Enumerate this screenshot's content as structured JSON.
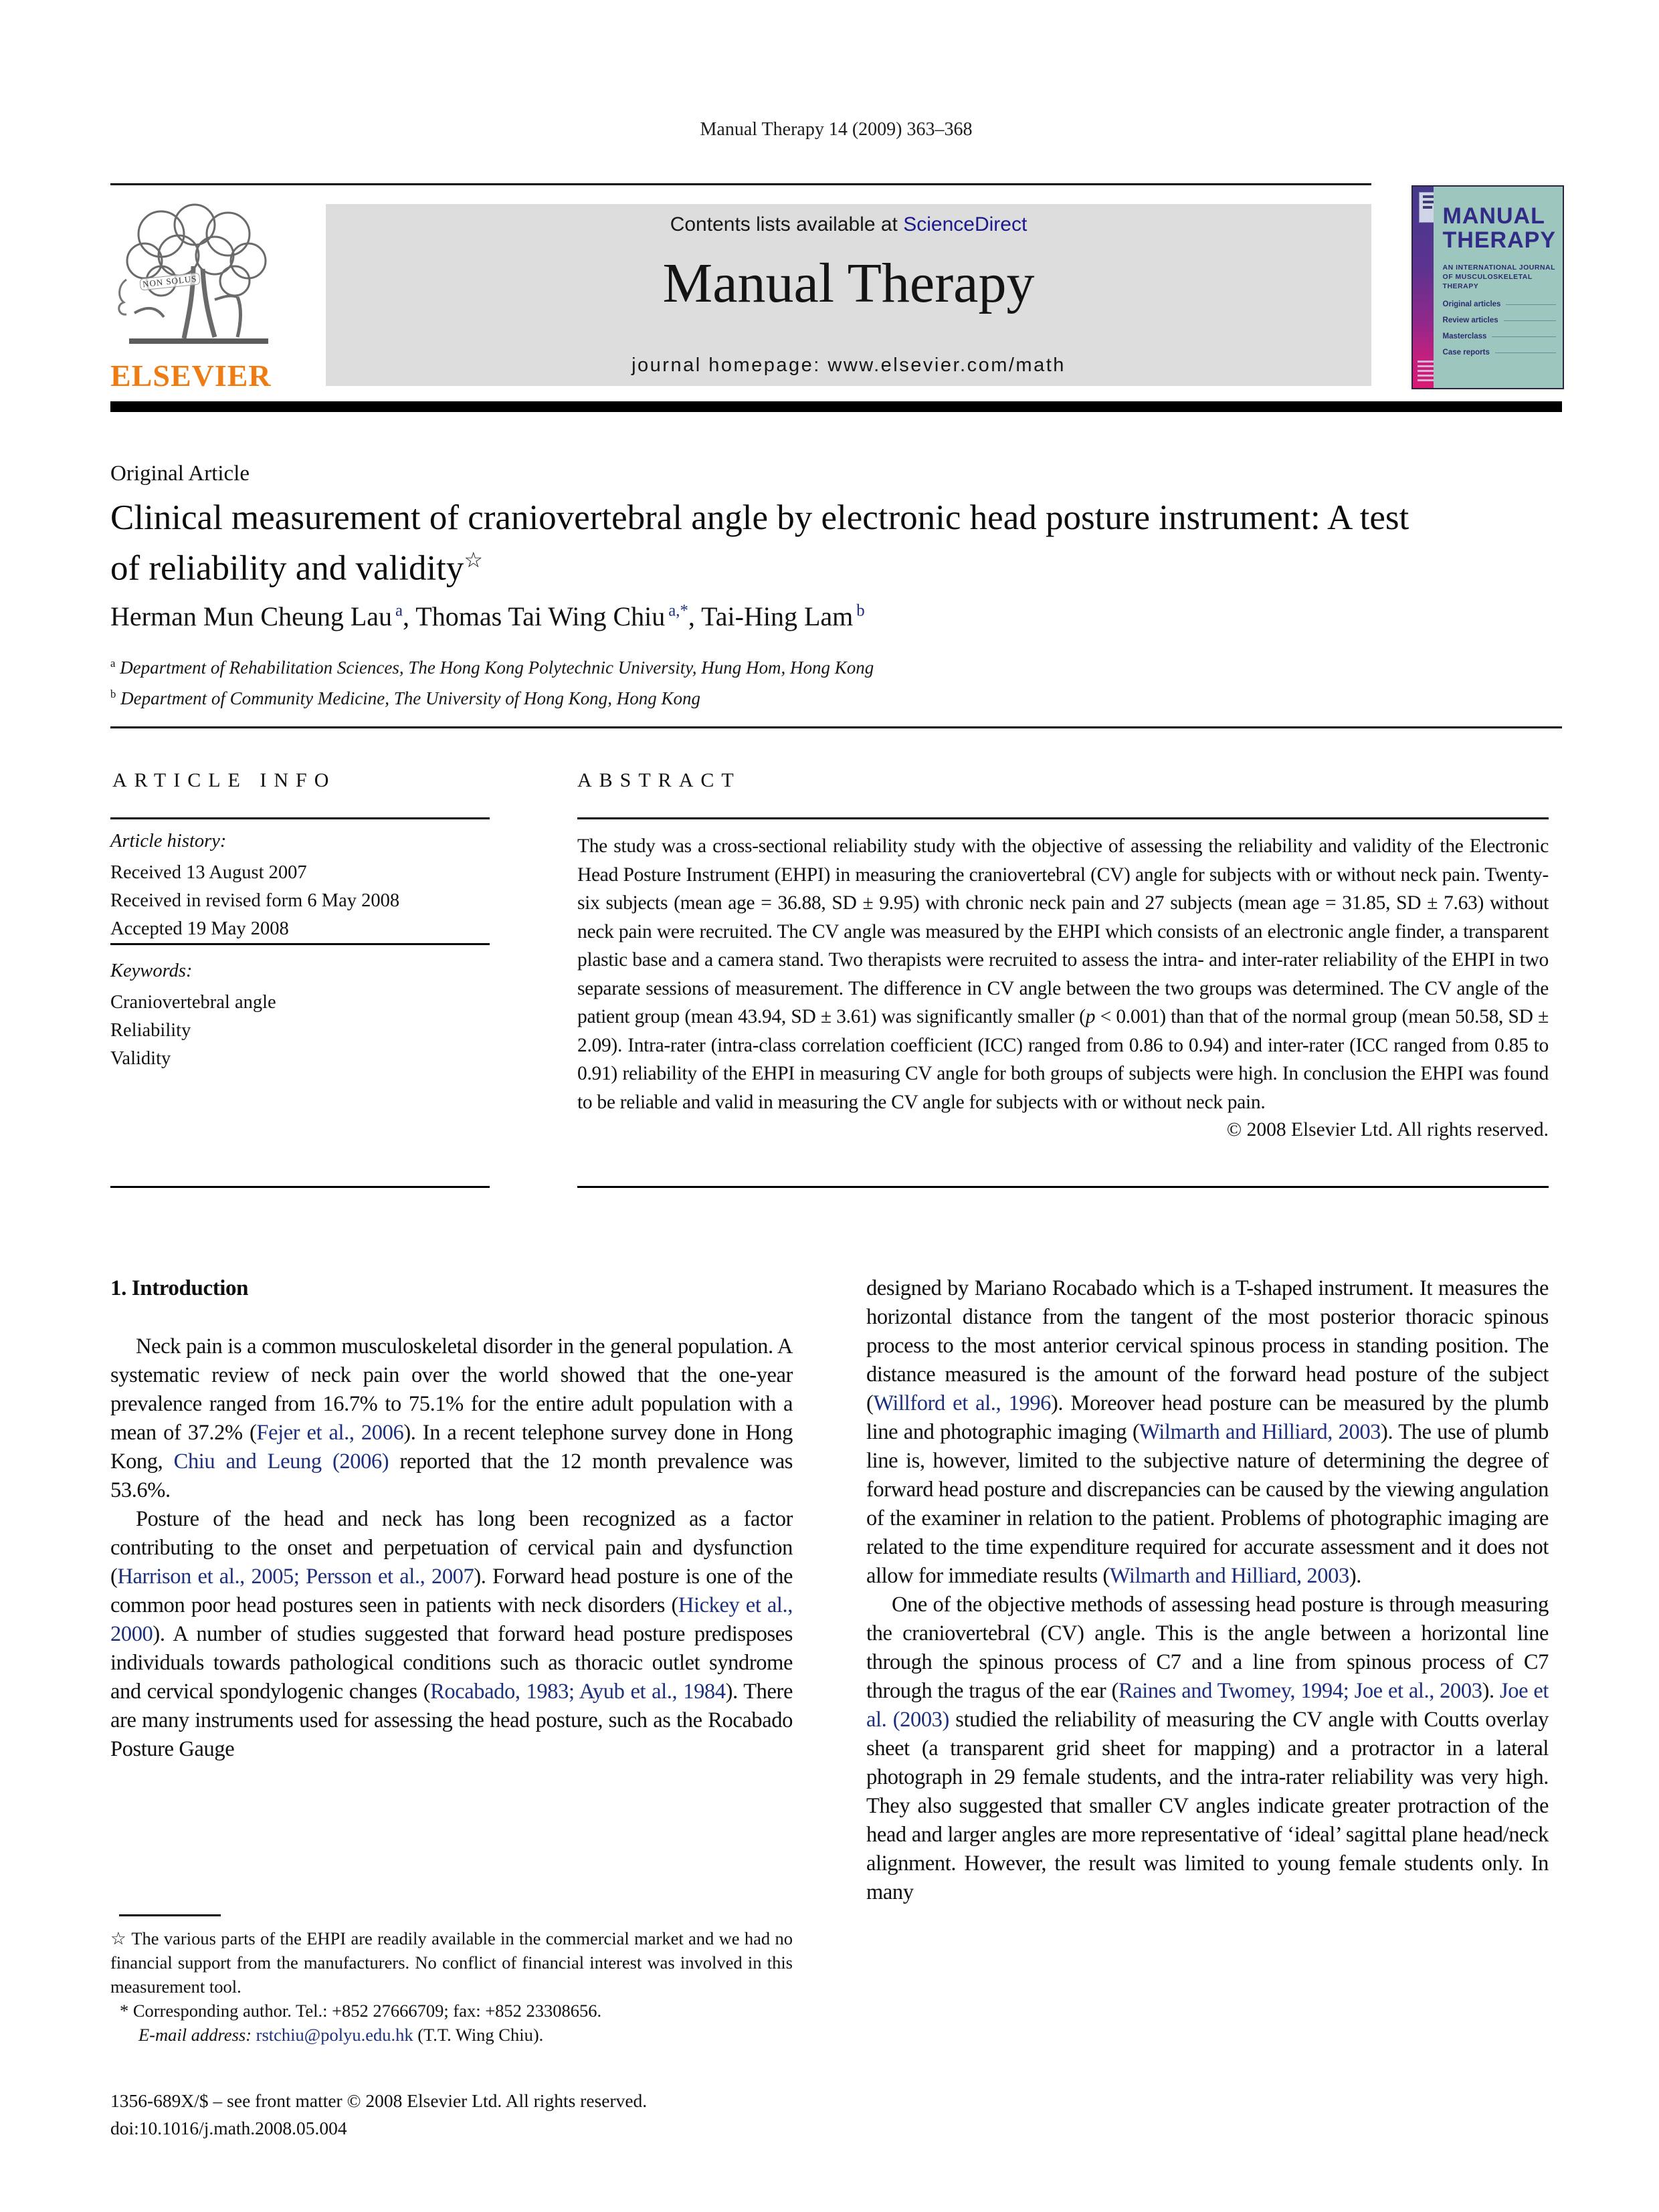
{
  "header": {
    "citation": "Manual Therapy 14 (2009) 363–368"
  },
  "masthead": {
    "contents_prefix": "Contents lists available at ",
    "sciencedirect": "ScienceDirect",
    "journal_title": "Manual Therapy",
    "homepage_line": "journal homepage: www.elsevier.com/math",
    "elsevier_label": "ELSEVIER",
    "elsevier_motto": "NON SOLUS"
  },
  "cover": {
    "title_line1": "MANUAL",
    "title_line2": "THERAPY",
    "subtitle_line1": "AN INTERNATIONAL JOURNAL",
    "subtitle_line2": "OF MUSCULOSKELETAL THERAPY",
    "items": [
      "Original articles",
      "Review articles",
      "Masterclass",
      "Case reports"
    ]
  },
  "article": {
    "type_label": "Original Article",
    "title": "Clinical measurement of craniovertebral angle by electronic head posture instrument: A test of reliability and validity",
    "title_footnote_mark": "☆",
    "authors": [
      {
        "name": "Herman Mun Cheung Lau",
        "sup": "a"
      },
      {
        "name": "Thomas Tai Wing Chiu",
        "sup": "a,*"
      },
      {
        "name": "Tai-Hing Lam",
        "sup": "b"
      }
    ],
    "affiliations": [
      {
        "sup": "a",
        "text": "Department of Rehabilitation Sciences, The Hong Kong Polytechnic University, Hung Hom, Hong Kong"
      },
      {
        "sup": "b",
        "text": "Department of Community Medicine, The University of Hong Kong, Hong Kong"
      }
    ]
  },
  "article_info": {
    "heading": "ARTICLE INFO",
    "history_label": "Article history:",
    "history": [
      "Received 13 August 2007",
      "Received in revised form 6 May 2008",
      "Accepted 19 May 2008"
    ],
    "keywords_label": "Keywords:",
    "keywords": [
      "Craniovertebral angle",
      "Reliability",
      "Validity"
    ]
  },
  "abstract": {
    "heading": "ABSTRACT",
    "rich": [
      "The study was a cross-sectional reliability study with the objective of assessing the reliability and validity of the Electronic Head Posture Instrument (EHPI) in measuring the craniovertebral (CV) angle for subjects with or without neck pain. Twenty-six subjects (mean age = 36.88, SD ± 9.95) with chronic neck pain and 27 subjects (mean age = 31.85, SD ± 7.63) without neck pain were recruited. The CV angle was measured by the EHPI which consists of an electronic angle finder, a transparent plastic base and a camera stand. Two therapists were recruited to assess the intra- and inter-rater reliability of the EHPI in two separate sessions of measurement. The difference in CV angle between the two groups was determined. The CV angle of the patient group (mean 43.94, SD ± 3.61) was significantly smaller (",
      {
        "t": "p",
        "k": "i"
      },
      " < 0.001) than that of the normal group (mean 50.58, SD ± 2.09). Intra-rater (intra-class correlation coefficient (ICC) ranged from 0.86 to 0.94) and inter-rater (ICC ranged from 0.85 to 0.91) reliability of the EHPI in measuring CV angle for both groups of subjects were high. In conclusion the EHPI was found to be reliable and valid in measuring the CV angle for subjects with or without neck pain."
    ],
    "copyright": "© 2008 Elsevier Ltd. All rights reserved."
  },
  "introduction": {
    "heading": "1. Introduction",
    "left_para1": [
      "Neck pain is a common musculoskeletal disorder in the general population. A systematic review of neck pain over the world showed that the one-year prevalence ranged from 16.7% to 75.1% for the entire adult population with a mean of 37.2% (",
      {
        "t": "Fejer et al., 2006",
        "k": "cite"
      },
      "). In a recent telephone survey done in Hong Kong, ",
      {
        "t": "Chiu and Leung (2006)",
        "k": "cite"
      },
      " reported that the 12 month prevalence was 53.6%."
    ],
    "left_para2": [
      "Posture of the head and neck has long been recognized as a factor contributing to the onset and perpetuation of cervical pain and dysfunction (",
      {
        "t": "Harrison et al., 2005; Persson et al., 2007",
        "k": "cite"
      },
      "). Forward head posture is one of the common poor head postures seen in patients with neck disorders (",
      {
        "t": "Hickey et al., 2000",
        "k": "cite"
      },
      "). A number of studies suggested that forward head posture predisposes individuals towards pathological conditions such as thoracic outlet syndrome and cervical spondylogenic changes (",
      {
        "t": "Rocabado, 1983; Ayub et al., 1984",
        "k": "cite"
      },
      "). There are many instruments used for assessing the head posture, such as the Rocabado Posture Gauge"
    ],
    "right_para1": [
      "designed by Mariano Rocabado which is a T-shaped instrument. It measures the horizontal distance from the tangent of the most posterior thoracic spinous process to the most anterior cervical spinous process in standing position. The distance measured is the amount of the forward head posture of the subject (",
      {
        "t": "Willford et al., 1996",
        "k": "cite"
      },
      "). Moreover head posture can be measured by the plumb line and photographic imaging (",
      {
        "t": "Wilmarth and Hilliard, 2003",
        "k": "cite"
      },
      "). The use of plumb line is, however, limited to the subjective nature of determining the degree of forward head posture and discrepancies can be caused by the viewing angulation of the examiner in relation to the patient. Problems of photographic imaging are related to the time expenditure required for accurate assessment and it does not allow for immediate results (",
      {
        "t": "Wilmarth and Hilliard, 2003",
        "k": "cite"
      },
      ")."
    ],
    "right_para2": [
      "One of the objective methods of assessing head posture is through measuring the craniovertebral (CV) angle. This is the angle between a horizontal line through the spinous process of C7 and a line from spinous process of C7 through the tragus of the ear (",
      {
        "t": "Raines and Twomey, 1994; Joe et al., 2003",
        "k": "cite"
      },
      "). ",
      {
        "t": "Joe et al. (2003)",
        "k": "cite"
      },
      " studied the reliability of measuring the CV angle with Coutts overlay sheet (a transparent grid sheet for mapping) and a protractor in a lateral photograph in 29 female students, and the intra-rater reliability was very high. They also suggested that smaller CV angles indicate greater protraction of the head and larger angles are more representative of ‘ideal’ sagittal plane head/neck alignment. However, the result was limited to young female students only. In many"
    ]
  },
  "footnotes": {
    "star_note": [
      "☆ The various parts of the EHPI are readily available in the commercial market and we had no financial support from the manufacturers. No conflict of financial interest was involved in this measurement tool."
    ],
    "corresponding": [
      "* Corresponding author. Tel.: +852 27666709; fax: +852 23308656."
    ],
    "email_line": [
      {
        "t": "E-mail address:",
        "k": "i"
      },
      " ",
      {
        "t": "rstchiu@polyu.edu.hk",
        "k": "link"
      },
      " (T.T. Wing Chiu)."
    ]
  },
  "imprint": {
    "issn_line": "1356-689X/$ – see front matter © 2008 Elsevier Ltd. All rights reserved.",
    "doi_line": "doi:10.1016/j.math.2008.05.004"
  }
}
